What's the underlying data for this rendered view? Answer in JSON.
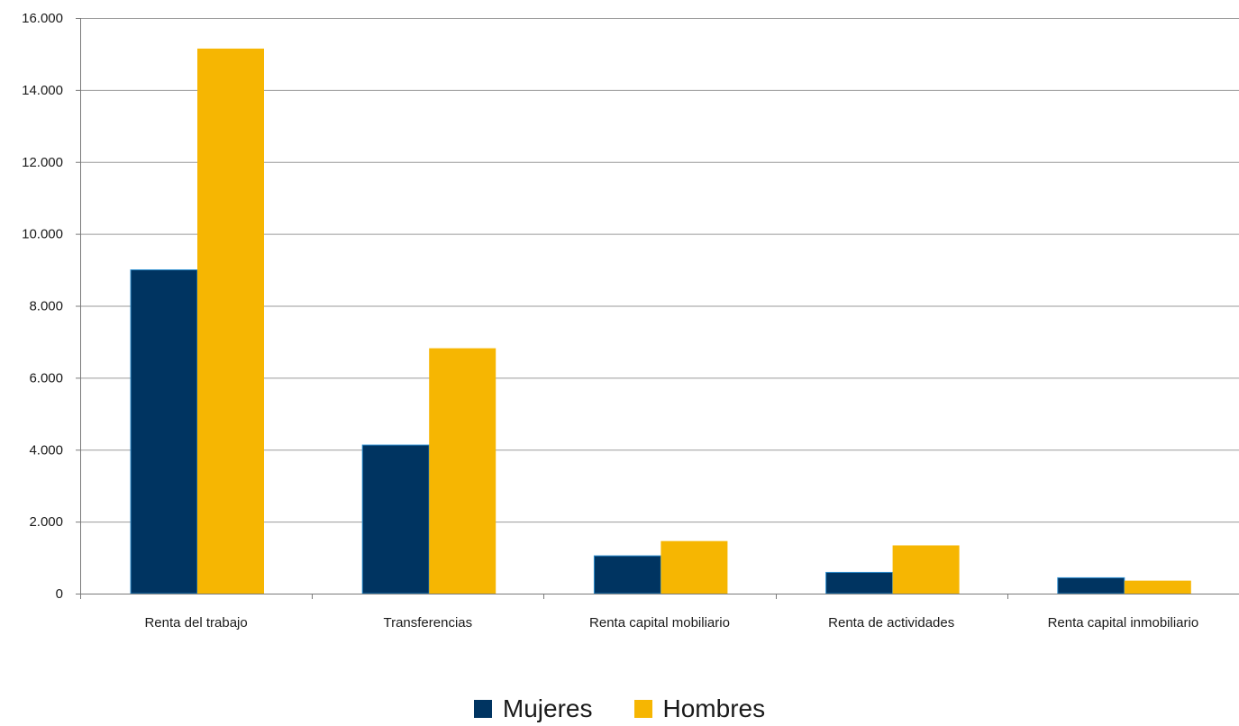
{
  "chart_data": {
    "type": "bar",
    "categories": [
      "Renta del trabajo",
      "Transferencias",
      "Renta capital mobiliario",
      "Renta de actividades",
      "Renta capital inmobiliario"
    ],
    "series": [
      {
        "name": "Mujeres",
        "color": "#003461",
        "values": [
          9000,
          4130,
          1050,
          590,
          440
        ]
      },
      {
        "name": "Hombres",
        "color": "#f6b602",
        "values": [
          15150,
          6820,
          1460,
          1340,
          360
        ]
      }
    ],
    "ylim": [
      0,
      16000
    ],
    "yticks": [
      0,
      2000,
      4000,
      6000,
      8000,
      10000,
      12000,
      14000,
      16000
    ],
    "ytick_labels": [
      "0",
      "2.000",
      "4.000",
      "6.000",
      "8.000",
      "10.000",
      "12.000",
      "14.000",
      "16.000"
    ],
    "grid": true,
    "legend_position": "bottom-center",
    "title": "",
    "xlabel": "",
    "ylabel": ""
  }
}
